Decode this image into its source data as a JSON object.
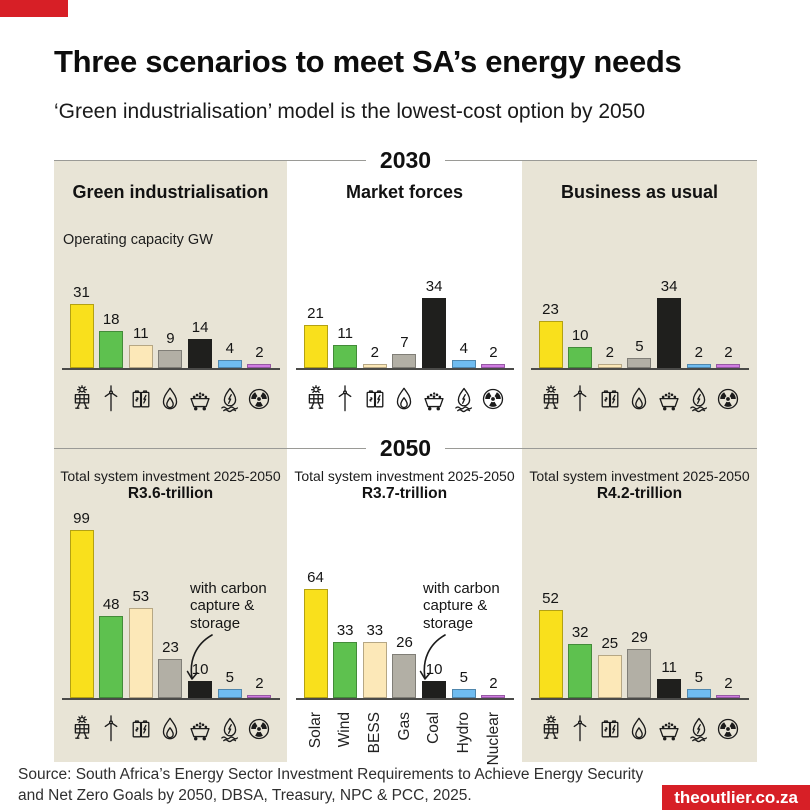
{
  "colors": {
    "brand_red": "#d71f26",
    "panel_beige": "#e8e4d6",
    "axis_gray": "#4a4a48",
    "divider_gray": "#9a9a96"
  },
  "header": {
    "title": "Three scenarios to meet SA’s energy needs",
    "subtitle": "‘Green industrialisation’ model is the lowest-cost option by 2050"
  },
  "footer": {
    "source_line1": "Source: South Africa’s Energy Sector Investment Requirements to Achieve Energy Security",
    "source_line2": "and Net Zero Goals by 2050, DBSA, Treasury, NPC & PCC, 2025.",
    "badge": "theoutlier.co.za"
  },
  "chart_data": {
    "type": "bar",
    "categories": [
      "Solar",
      "Wind",
      "BESS",
      "Gas",
      "Coal",
      "Hydro",
      "Nuclear"
    ],
    "category_icons": [
      "solar-panel-icon",
      "wind-turbine-icon",
      "battery-storage-icon",
      "gas-flame-icon",
      "coal-cart-icon",
      "hydro-power-icon",
      "nuclear-icon"
    ],
    "palette": [
      "#f9e01c",
      "#5ec14f",
      "#fce8b8",
      "#b2afa5",
      "#1f1f1d",
      "#6fbcf0",
      "#d07ce2"
    ],
    "legend_position": "none",
    "grid": false,
    "sections": [
      {
        "year": "2030",
        "panels": [
          {
            "scenario": "Green industrialisation",
            "unit_label": "Operating capacity GW",
            "values": [
              31,
              18,
              11,
              9,
              14,
              4,
              2
            ],
            "label_style": "icons"
          },
          {
            "scenario": "Market forces",
            "values": [
              21,
              11,
              2,
              7,
              34,
              4,
              2
            ],
            "label_style": "icons"
          },
          {
            "scenario": "Business as usual",
            "values": [
              23,
              10,
              2,
              5,
              34,
              2,
              2
            ],
            "label_style": "icons"
          }
        ]
      },
      {
        "year": "2050",
        "panels": [
          {
            "caption": "Total system investment 2025-2050",
            "total": "R3.6-trillion",
            "values": [
              99,
              48,
              53,
              23,
              10,
              5,
              2
            ],
            "annotation": "with carbon capture & storage",
            "label_style": "icons"
          },
          {
            "caption": "Total system investment 2025-2050",
            "total": "R3.7-trillion",
            "values": [
              64,
              33,
              33,
              26,
              10,
              5,
              2
            ],
            "annotation": "with carbon capture & storage",
            "label_style": "text"
          },
          {
            "caption": "Total system investment 2025-2050",
            "total": "R4.2-trillion",
            "values": [
              52,
              32,
              25,
              29,
              11,
              5,
              2
            ],
            "label_style": "icons"
          }
        ]
      }
    ]
  }
}
